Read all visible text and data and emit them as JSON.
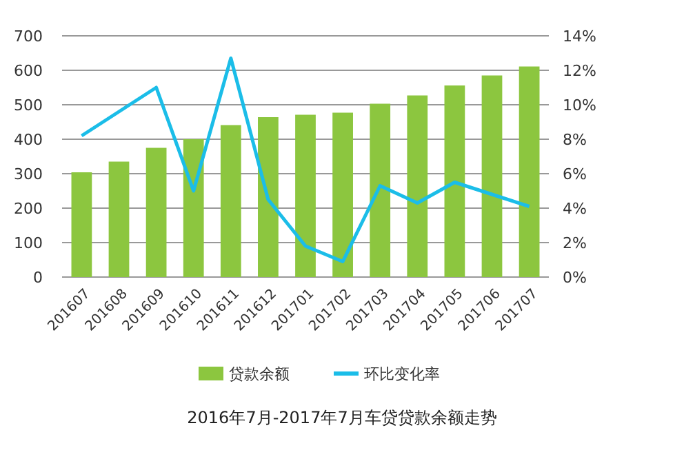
{
  "chart_data": {
    "type": "bar",
    "title": "2016年7月-2017年7月车贷贷款余额走势",
    "categories": [
      "201607",
      "201608",
      "201609",
      "201610",
      "201611",
      "201612",
      "201701",
      "201702",
      "201703",
      "201704",
      "201705",
      "201706",
      "201707"
    ],
    "series": [
      {
        "name": "贷款余额",
        "color": "#8cc63f",
        "values": [
          304,
          335,
          375,
          400,
          441,
          464,
          471,
          477,
          503,
          527,
          556,
          585,
          611
        ]
      },
      {
        "name": "环比变化率",
        "type": "line",
        "axis": "y2",
        "color": "#1bbde8",
        "values": [
          8.2,
          9.6,
          11.0,
          5.0,
          12.7,
          4.5,
          1.8,
          0.9,
          5.3,
          4.3,
          5.5,
          4.8,
          4.1
        ]
      }
    ],
    "ylim": [
      0,
      700
    ],
    "yticks": [
      0,
      100,
      200,
      300,
      400,
      500,
      600,
      700
    ],
    "y2lim": [
      0,
      14
    ],
    "y2ticks": [
      {
        "value": 0,
        "label": "0%"
      },
      {
        "value": 2,
        "label": "2%"
      },
      {
        "value": 4,
        "label": "4%"
      },
      {
        "value": 6,
        "label": "6%"
      },
      {
        "value": 8,
        "label": "8%"
      },
      {
        "value": 10,
        "label": "10%"
      },
      {
        "value": 12,
        "label": "12%"
      },
      {
        "value": 14,
        "label": "14%"
      }
    ],
    "grid": "y",
    "legend": "bottom",
    "marker": "none",
    "line_style": "solid"
  }
}
